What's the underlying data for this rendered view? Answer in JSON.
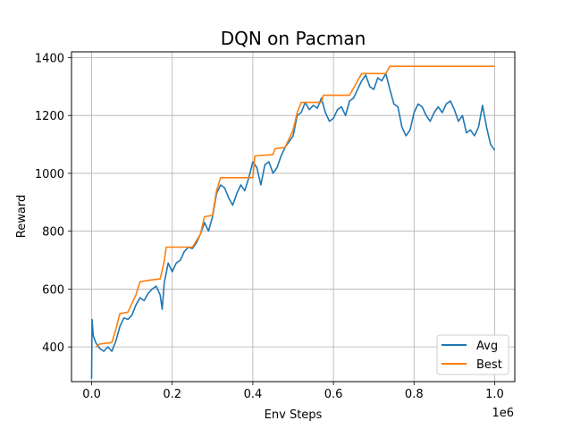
{
  "chart_data": {
    "type": "line",
    "title": "DQN on Pacman",
    "xlabel": "Env Steps",
    "ylabel": "Reward",
    "x_offset_text": "1e6",
    "xlim": [
      -0.05,
      1.05
    ],
    "ylim": [
      280,
      1420
    ],
    "grid": true,
    "legend_position": "lower-right",
    "xticks": [
      0.0,
      0.2,
      0.4,
      0.6,
      0.8,
      1.0
    ],
    "xtick_labels": [
      "0.0",
      "0.2",
      "0.4",
      "0.6",
      "0.8",
      "1.0"
    ],
    "yticks": [
      400,
      600,
      800,
      1000,
      1200,
      1400
    ],
    "ytick_labels": [
      "400",
      "600",
      "800",
      "1000",
      "1200",
      "1400"
    ],
    "series": [
      {
        "name": "Avg",
        "color": "#1f77b4",
        "points": [
          [
            0.0,
            290
          ],
          [
            0.001,
            495
          ],
          [
            0.004,
            440
          ],
          [
            0.01,
            415
          ],
          [
            0.015,
            405
          ],
          [
            0.02,
            395
          ],
          [
            0.03,
            385
          ],
          [
            0.04,
            400
          ],
          [
            0.05,
            385
          ],
          [
            0.06,
            420
          ],
          [
            0.07,
            470
          ],
          [
            0.08,
            500
          ],
          [
            0.09,
            495
          ],
          [
            0.1,
            510
          ],
          [
            0.11,
            545
          ],
          [
            0.12,
            570
          ],
          [
            0.13,
            560
          ],
          [
            0.14,
            585
          ],
          [
            0.15,
            600
          ],
          [
            0.16,
            610
          ],
          [
            0.17,
            580
          ],
          [
            0.175,
            530
          ],
          [
            0.18,
            620
          ],
          [
            0.19,
            690
          ],
          [
            0.2,
            660
          ],
          [
            0.21,
            690
          ],
          [
            0.22,
            700
          ],
          [
            0.23,
            730
          ],
          [
            0.24,
            745
          ],
          [
            0.25,
            740
          ],
          [
            0.26,
            760
          ],
          [
            0.27,
            790
          ],
          [
            0.28,
            830
          ],
          [
            0.29,
            800
          ],
          [
            0.3,
            850
          ],
          [
            0.31,
            930
          ],
          [
            0.32,
            960
          ],
          [
            0.33,
            950
          ],
          [
            0.34,
            915
          ],
          [
            0.35,
            890
          ],
          [
            0.36,
            930
          ],
          [
            0.37,
            960
          ],
          [
            0.38,
            940
          ],
          [
            0.39,
            985
          ],
          [
            0.4,
            1040
          ],
          [
            0.41,
            1020
          ],
          [
            0.42,
            960
          ],
          [
            0.43,
            1030
          ],
          [
            0.44,
            1040
          ],
          [
            0.45,
            1000
          ],
          [
            0.46,
            1020
          ],
          [
            0.47,
            1060
          ],
          [
            0.48,
            1090
          ],
          [
            0.49,
            1110
          ],
          [
            0.5,
            1130
          ],
          [
            0.51,
            1200
          ],
          [
            0.52,
            1210
          ],
          [
            0.53,
            1245
          ],
          [
            0.54,
            1220
          ],
          [
            0.55,
            1235
          ],
          [
            0.56,
            1225
          ],
          [
            0.57,
            1260
          ],
          [
            0.58,
            1210
          ],
          [
            0.59,
            1180
          ],
          [
            0.6,
            1190
          ],
          [
            0.61,
            1220
          ],
          [
            0.62,
            1230
          ],
          [
            0.63,
            1200
          ],
          [
            0.64,
            1250
          ],
          [
            0.65,
            1260
          ],
          [
            0.66,
            1290
          ],
          [
            0.67,
            1320
          ],
          [
            0.68,
            1340
          ],
          [
            0.69,
            1300
          ],
          [
            0.7,
            1290
          ],
          [
            0.71,
            1330
          ],
          [
            0.72,
            1320
          ],
          [
            0.73,
            1345
          ],
          [
            0.74,
            1290
          ],
          [
            0.75,
            1240
          ],
          [
            0.76,
            1230
          ],
          [
            0.77,
            1160
          ],
          [
            0.78,
            1130
          ],
          [
            0.79,
            1150
          ],
          [
            0.8,
            1210
          ],
          [
            0.81,
            1240
          ],
          [
            0.82,
            1230
          ],
          [
            0.83,
            1200
          ],
          [
            0.84,
            1180
          ],
          [
            0.85,
            1210
          ],
          [
            0.86,
            1230
          ],
          [
            0.87,
            1210
          ],
          [
            0.88,
            1240
          ],
          [
            0.89,
            1250
          ],
          [
            0.9,
            1220
          ],
          [
            0.91,
            1180
          ],
          [
            0.92,
            1200
          ],
          [
            0.93,
            1140
          ],
          [
            0.94,
            1150
          ],
          [
            0.95,
            1130
          ],
          [
            0.96,
            1160
          ],
          [
            0.97,
            1235
          ],
          [
            0.98,
            1160
          ],
          [
            0.99,
            1100
          ],
          [
            1.0,
            1080
          ]
        ]
      },
      {
        "name": "Best",
        "color": "#ff7f0e",
        "points": [
          [
            0.01,
            400
          ],
          [
            0.02,
            410
          ],
          [
            0.05,
            415
          ],
          [
            0.06,
            460
          ],
          [
            0.07,
            515
          ],
          [
            0.09,
            520
          ],
          [
            0.1,
            550
          ],
          [
            0.11,
            580
          ],
          [
            0.12,
            625
          ],
          [
            0.14,
            630
          ],
          [
            0.17,
            635
          ],
          [
            0.18,
            695
          ],
          [
            0.185,
            745
          ],
          [
            0.25,
            745
          ],
          [
            0.27,
            790
          ],
          [
            0.28,
            850
          ],
          [
            0.3,
            855
          ],
          [
            0.31,
            940
          ],
          [
            0.32,
            985
          ],
          [
            0.4,
            985
          ],
          [
            0.405,
            1060
          ],
          [
            0.45,
            1065
          ],
          [
            0.455,
            1085
          ],
          [
            0.48,
            1090
          ],
          [
            0.5,
            1150
          ],
          [
            0.51,
            1210
          ],
          [
            0.52,
            1245
          ],
          [
            0.57,
            1245
          ],
          [
            0.575,
            1270
          ],
          [
            0.64,
            1270
          ],
          [
            0.66,
            1320
          ],
          [
            0.67,
            1345
          ],
          [
            0.73,
            1345
          ],
          [
            0.74,
            1370
          ],
          [
            1.0,
            1370
          ]
        ]
      }
    ]
  }
}
